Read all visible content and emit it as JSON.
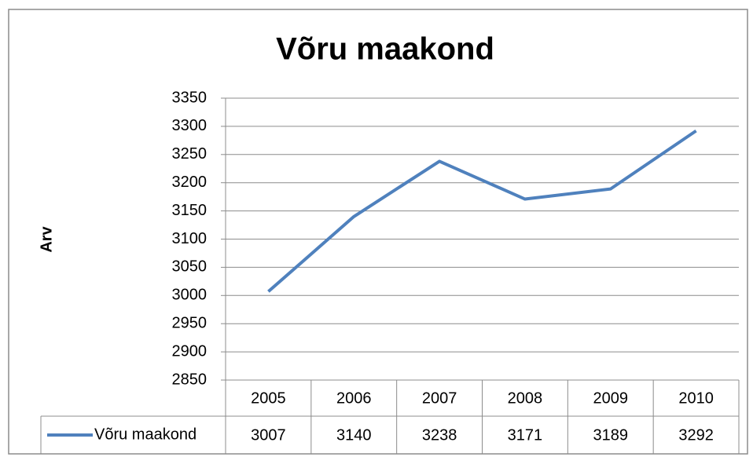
{
  "chart_data": {
    "type": "line",
    "title": "Võru maakond",
    "y_label": "Arv",
    "categories": [
      "2005",
      "2006",
      "2007",
      "2008",
      "2009",
      "2010"
    ],
    "series": [
      {
        "name": "Võru maakond",
        "color": "#4f81bd",
        "values": [
          3007,
          3140,
          3238,
          3171,
          3189,
          3292
        ]
      }
    ],
    "ylim": [
      2850,
      3350
    ],
    "yticks": [
      2850,
      2900,
      2950,
      3000,
      3050,
      3100,
      3150,
      3200,
      3250,
      3300,
      3350
    ],
    "grid": true,
    "data_table": true
  }
}
